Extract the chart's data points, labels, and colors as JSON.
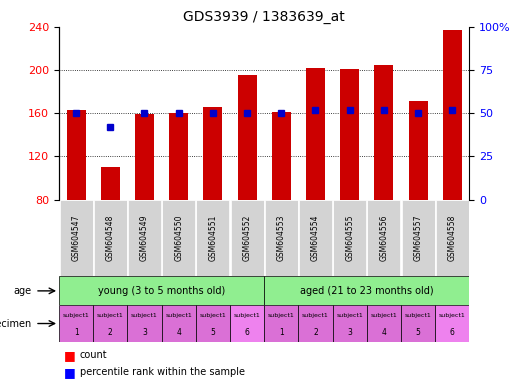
{
  "title": "GDS3939 / 1383639_at",
  "samples": [
    "GSM604547",
    "GSM604548",
    "GSM604549",
    "GSM604550",
    "GSM604551",
    "GSM604552",
    "GSM604553",
    "GSM604554",
    "GSM604555",
    "GSM604556",
    "GSM604557",
    "GSM604558"
  ],
  "counts": [
    163,
    110,
    159,
    160,
    166,
    195,
    161,
    202,
    201,
    205,
    171,
    237
  ],
  "percentile_ranks": [
    50,
    42,
    50,
    50,
    50,
    50,
    50,
    52,
    52,
    52,
    50,
    52
  ],
  "bar_bottom": 80,
  "ylim": [
    80,
    240
  ],
  "yticks": [
    80,
    120,
    160,
    200,
    240
  ],
  "y2ticks": [
    0,
    25,
    50,
    75,
    100
  ],
  "y2lim": [
    0,
    100
  ],
  "age_labels": [
    "young (3 to 5 months old)",
    "aged (21 to 23 months old)"
  ],
  "age_color": "#90ee90",
  "specimen_colors": [
    "#da70d6",
    "#da70d6",
    "#da70d6",
    "#da70d6",
    "#da70d6",
    "#ee82ee",
    "#da70d6",
    "#da70d6",
    "#da70d6",
    "#da70d6",
    "#da70d6",
    "#ee82ee"
  ],
  "spec_numbers": [
    "1",
    "2",
    "3",
    "4",
    "5",
    "6",
    "1",
    "2",
    "3",
    "4",
    "5",
    "6"
  ],
  "bar_color": "#cc0000",
  "dot_color": "#0000cc",
  "tick_label_bg": "#d3d3d3",
  "title_fontsize": 10,
  "axis_label_fontsize": 7,
  "sample_label_fontsize": 5.5,
  "annotation_fontsize": 7
}
